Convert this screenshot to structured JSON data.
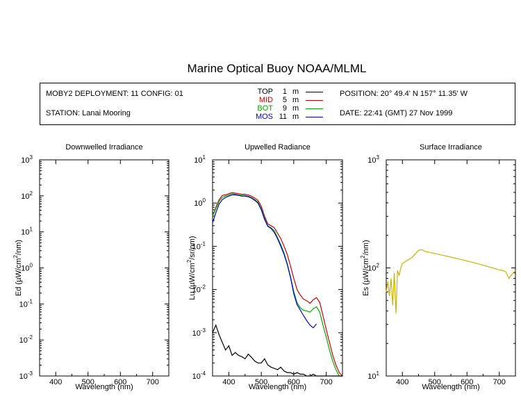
{
  "title": "Marine Optical Buoy NOAA/MLML",
  "info": {
    "deployment": "MOBY2 DEPLOYMENT: 11 CONFIG: 01",
    "station": "STATION: Lanai Mooring",
    "position": "POSITION: 20° 49.4' N   157° 11.35' W",
    "date": "DATE: 22:41 (GMT) 27 Nov 1999",
    "legend": [
      {
        "name": "TOP",
        "depth": "1",
        "unit": "m",
        "color": "#000000"
      },
      {
        "name": "MID",
        "depth": "5",
        "unit": "m",
        "color": "#cc0000"
      },
      {
        "name": "BOT",
        "depth": "9",
        "unit": "m",
        "color": "#00aa00"
      },
      {
        "name": "MOS",
        "depth": "11",
        "unit": "m",
        "color": "#0000cc"
      }
    ]
  },
  "chart_data": [
    {
      "type": "line",
      "title": "Downwelled Irradiance",
      "xlabel": "Wavelength (nm)",
      "ylabel": "Ed  (µW/cm²/nm)",
      "ylabel_main": "Ed  (",
      "ylabel_mu": "µ",
      "ylabel_unit": "W/cm",
      "ylabel_sup": "2",
      "ylabel_tail": "/nm)",
      "xlim": [
        350,
        750
      ],
      "ylim": [
        0.001,
        1000
      ],
      "yscale": "log",
      "xticks": [
        400,
        500,
        600,
        700
      ],
      "ytick_exponents": [
        -3,
        -2,
        -1,
        0,
        1,
        2,
        3
      ],
      "series": []
    },
    {
      "type": "line",
      "title": "Upwelled Radiance",
      "xlabel": "Wavelength (nm)",
      "ylabel": "Lu  (µW/cm²/sr/nm)",
      "ylabel_main": "Lu  (",
      "ylabel_mu": "µ",
      "ylabel_unit": "W/cm",
      "ylabel_sup": "2",
      "ylabel_tail": "/sr/nm)",
      "xlim": [
        350,
        750
      ],
      "ylim": [
        0.0001,
        10
      ],
      "yscale": "log",
      "xticks": [
        400,
        500,
        600,
        700
      ],
      "ytick_exponents": [
        -4,
        -3,
        -2,
        -1,
        0,
        1
      ],
      "series": [
        {
          "color": "#cc0000",
          "x": [
            350,
            360,
            370,
            380,
            390,
            400,
            410,
            420,
            430,
            440,
            450,
            460,
            470,
            480,
            490,
            500,
            510,
            520,
            530,
            540,
            550,
            560,
            570,
            580,
            590,
            600,
            610,
            620,
            630,
            640,
            650,
            660,
            670,
            680,
            690,
            700,
            710,
            720,
            730,
            740,
            750
          ],
          "y": [
            0.5,
            0.8,
            1.2,
            1.5,
            1.55,
            1.65,
            1.75,
            1.7,
            1.65,
            1.6,
            1.6,
            1.55,
            1.45,
            1.3,
            1.15,
            0.85,
            0.5,
            0.33,
            0.3,
            0.27,
            0.2,
            0.15,
            0.1,
            0.065,
            0.035,
            0.018,
            0.01,
            0.0075,
            0.006,
            0.0055,
            0.0048,
            0.0058,
            0.0065,
            0.005,
            0.0025,
            0.0012,
            0.0006,
            0.0003,
            0.00018,
            0.00012,
            0.0001
          ]
        },
        {
          "color": "#00aa00",
          "x": [
            350,
            360,
            370,
            380,
            390,
            400,
            410,
            420,
            430,
            440,
            450,
            460,
            470,
            480,
            490,
            500,
            510,
            520,
            530,
            540,
            550,
            560,
            570,
            580,
            590,
            600,
            610,
            620,
            630,
            640,
            650,
            660,
            670,
            680,
            690,
            700,
            710,
            720,
            730,
            740,
            750
          ],
          "y": [
            0.5,
            0.75,
            1.1,
            1.35,
            1.45,
            1.55,
            1.65,
            1.6,
            1.55,
            1.5,
            1.5,
            1.45,
            1.35,
            1.2,
            1.05,
            0.75,
            0.45,
            0.3,
            0.27,
            0.23,
            0.16,
            0.11,
            0.07,
            0.04,
            0.02,
            0.009,
            0.005,
            0.0038,
            0.0033,
            0.0032,
            0.003,
            0.0036,
            0.004,
            0.003,
            0.0015,
            0.0008,
            0.0004,
            0.00022,
            0.00014,
            0.0001,
            0.0001
          ]
        },
        {
          "color": "#0000cc",
          "x": [
            350,
            360,
            370,
            380,
            390,
            400,
            410,
            420,
            430,
            440,
            450,
            460,
            470,
            480,
            490,
            500,
            510,
            520,
            530,
            540,
            550,
            560,
            570,
            580,
            590,
            600,
            610,
            630,
            640,
            650,
            660,
            670
          ],
          "y": [
            0.35,
            0.6,
            0.95,
            1.2,
            1.35,
            1.45,
            1.55,
            1.55,
            1.5,
            1.45,
            1.45,
            1.4,
            1.3,
            1.15,
            1.0,
            0.7,
            0.42,
            0.29,
            0.26,
            0.21,
            0.15,
            0.1,
            0.065,
            0.038,
            0.019,
            0.008,
            0.0045,
            0.0025,
            0.0019,
            0.0015,
            0.0013,
            0.0016
          ]
        },
        {
          "color": "#000000",
          "x": [
            350,
            360,
            370,
            380,
            390,
            400,
            410,
            420,
            430,
            440,
            450,
            460,
            470,
            480,
            490,
            500,
            510,
            520,
            530,
            540,
            550,
            560,
            570,
            580,
            590,
            600,
            610,
            620,
            630,
            640,
            650,
            660,
            670,
            680,
            690,
            700,
            710,
            720,
            730,
            740,
            750
          ],
          "y": [
            0.001,
            0.0015,
            0.0009,
            0.0006,
            0.0004,
            0.0005,
            0.0003,
            0.00035,
            0.0003,
            0.00028,
            0.00025,
            0.00032,
            0.00027,
            0.00022,
            0.0002,
            0.0002,
            0.00025,
            0.00018,
            0.00016,
            0.00015,
            0.00014,
            0.00016,
            0.00013,
            0.00012,
            0.00012,
            0.00011,
            0.00012,
            0.00011,
            0.00011,
            0.0001,
            0.0001,
            0.00011,
            0.0001,
            0.0001,
            0.0001,
            0.0001,
            0.0001,
            0.0001,
            0.0001,
            0.0001,
            0.0001
          ]
        }
      ]
    },
    {
      "type": "line",
      "title": "Surface Irradiance",
      "xlabel": "Wavelength (nm)",
      "ylabel": "Es  (µW/cm²/nm)",
      "ylabel_main": "Es  (",
      "ylabel_mu": "µ",
      "ylabel_unit": "W/cm",
      "ylabel_sup": "2",
      "ylabel_tail": "/nm)",
      "xlim": [
        350,
        750
      ],
      "ylim": [
        10,
        1000
      ],
      "yscale": "log",
      "xticks": [
        400,
        500,
        600,
        700
      ],
      "ytick_exponents": [
        1,
        2,
        3
      ],
      "series": [
        {
          "color": "#c8b400",
          "x": [
            350,
            355,
            360,
            365,
            370,
            375,
            380,
            385,
            390,
            395,
            400,
            410,
            420,
            430,
            440,
            450,
            460,
            470,
            480,
            490,
            500,
            510,
            520,
            530,
            540,
            550,
            560,
            570,
            580,
            590,
            600,
            610,
            620,
            630,
            640,
            650,
            660,
            670,
            680,
            690,
            700,
            710,
            720,
            730,
            740,
            750
          ],
          "y": [
            60,
            75,
            55,
            80,
            45,
            90,
            38,
            95,
            85,
            100,
            110,
            115,
            120,
            125,
            135,
            145,
            148,
            142,
            140,
            138,
            136,
            134,
            132,
            130,
            128,
            126,
            124,
            122,
            120,
            118,
            116,
            114,
            112,
            110,
            108,
            106,
            104,
            102,
            100,
            98,
            96,
            95,
            92,
            80,
            88,
            95
          ]
        }
      ]
    }
  ]
}
